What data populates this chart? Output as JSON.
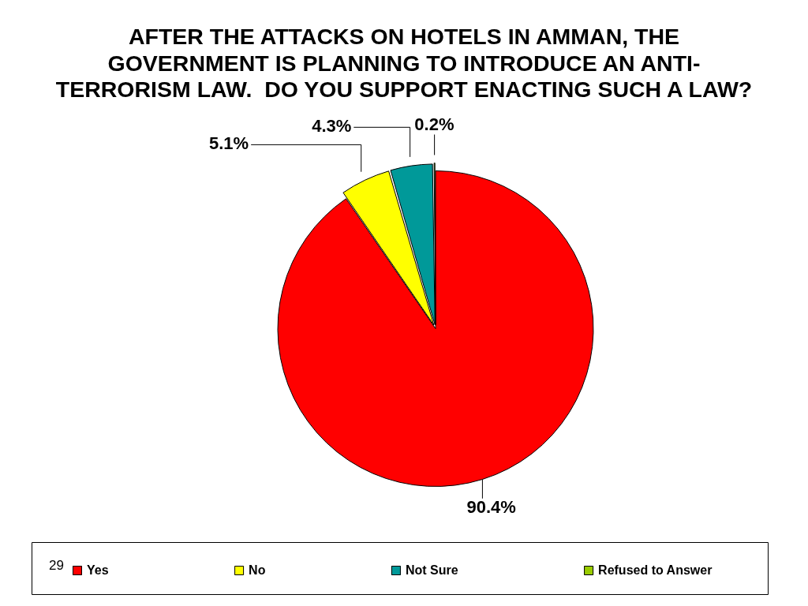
{
  "chart_data": {
    "type": "pie",
    "title": "AFTER THE ATTACKS ON HOTELS IN AMMAN, THE GOVERNMENT IS PLANNING TO INTRODUCE AN ANTI-TERRORISM LAW.  DO YOU SUPPORT ENACTING SUCH A LAW?",
    "categories": [
      "Yes",
      "No",
      "Not Sure",
      "Refused to Answer"
    ],
    "values": [
      90.4,
      5.1,
      4.3,
      0.2
    ],
    "colors": [
      "#ff0000",
      "#ffff00",
      "#009999",
      "#99cc00"
    ],
    "value_labels": [
      "90.4%",
      "5.1%",
      "4.3%",
      "0.2%"
    ],
    "legend": "bottom",
    "annotations": [
      "29"
    ]
  }
}
